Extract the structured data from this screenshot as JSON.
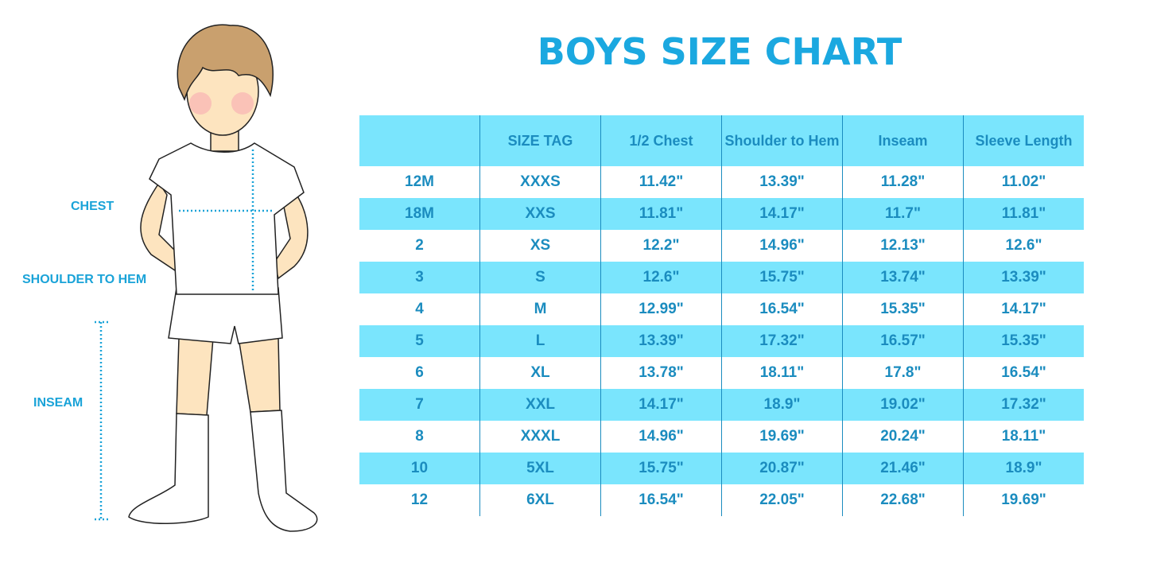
{
  "title": "BOYS SIZE CHART",
  "colors": {
    "accent": "#1ba8e0",
    "row_highlight": "#7ae5fd",
    "table_text": "#1b8cbf"
  },
  "measure_labels": {
    "chest": "CHEST",
    "shoulder_to_hem": "SHOULDER TO HEM",
    "inseam": "INSEAM"
  },
  "table": {
    "headers": [
      "",
      "SIZE TAG",
      "1/2 Chest",
      "Shoulder to Hem",
      "Inseam",
      "Sleeve Length"
    ],
    "rows": [
      [
        "12M",
        "XXXS",
        "11.42\"",
        "13.39\"",
        "11.28\"",
        "11.02\""
      ],
      [
        "18M",
        "XXS",
        "11.81\"",
        "14.17\"",
        "11.7\"",
        "11.81\""
      ],
      [
        "2",
        "XS",
        "12.2\"",
        "14.96\"",
        "12.13\"",
        "12.6\""
      ],
      [
        "3",
        "S",
        "12.6\"",
        "15.75\"",
        "13.74\"",
        "13.39\""
      ],
      [
        "4",
        "M",
        "12.99\"",
        "16.54\"",
        "15.35\"",
        "14.17\""
      ],
      [
        "5",
        "L",
        "13.39\"",
        "17.32\"",
        "16.57\"",
        "15.35\""
      ],
      [
        "6",
        "XL",
        "13.78\"",
        "18.11\"",
        "17.8\"",
        "16.54\""
      ],
      [
        "7",
        "XXL",
        "14.17\"",
        "18.9\"",
        "19.02\"",
        "17.32\""
      ],
      [
        "8",
        "XXXL",
        "14.96\"",
        "19.69\"",
        "20.24\"",
        "18.11\""
      ],
      [
        "10",
        "5XL",
        "15.75\"",
        "20.87\"",
        "21.46\"",
        "18.9\""
      ],
      [
        "12",
        "6XL",
        "16.54\"",
        "22.05\"",
        "22.68\"",
        "19.69\""
      ]
    ]
  }
}
